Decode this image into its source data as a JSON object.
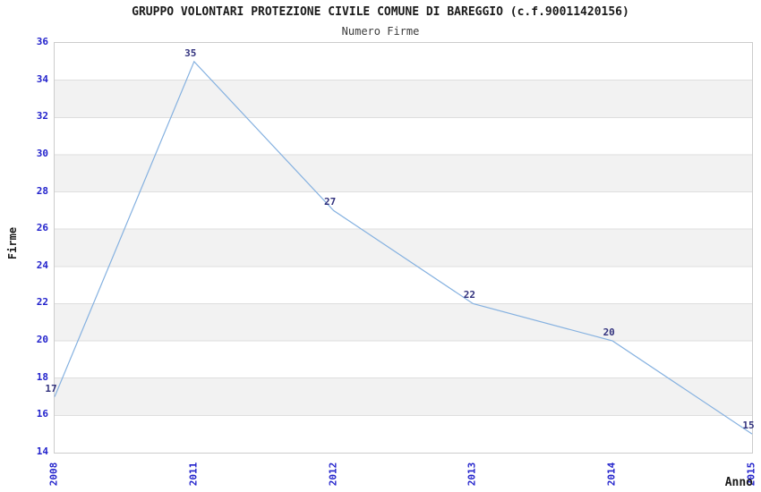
{
  "chart_data": {
    "type": "line",
    "title": "GRUPPO VOLONTARI PROTEZIONE CIVILE COMUNE DI BAREGGIO (c.f.90011420156)",
    "subtitle": "Numero Firme",
    "xlabel": "Anno",
    "ylabel": "Firme",
    "categories": [
      "2008",
      "2011",
      "2012",
      "2013",
      "2014",
      "2015"
    ],
    "values": [
      17,
      35,
      27,
      22,
      20,
      15
    ],
    "ylim": [
      14,
      36
    ],
    "ytick_step": 2,
    "grid": "alternating-horizontal-bands",
    "legend": "none",
    "point_labels_visible": true,
    "colors": {
      "line": "#85b1e0",
      "axis_tick_label": "#2323cc",
      "point_label": "#32327e",
      "band": "#f2f2f2",
      "gridline": "#dedede",
      "plot_border": "#cccccc",
      "title": "#1a1a1a",
      "subtitle": "#3c3c3c"
    }
  }
}
